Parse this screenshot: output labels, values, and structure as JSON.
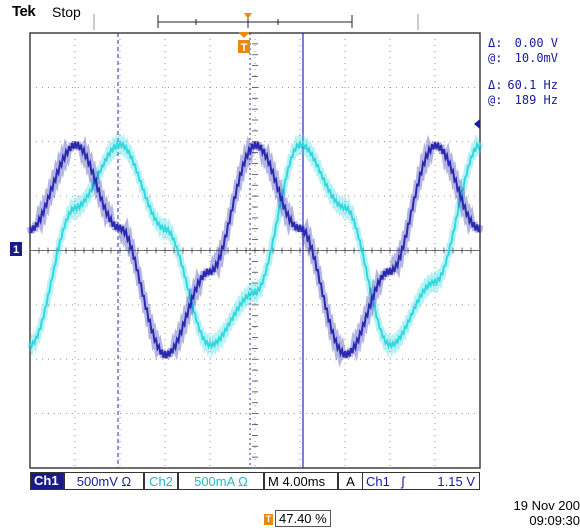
{
  "header": {
    "brand": "Tek",
    "status": "Stop"
  },
  "markers": {
    "trigger_glyph": "T",
    "ch1_glyph": "1"
  },
  "measurements": {
    "amp_delta_sym": "Δ:",
    "amp_delta_val": "0.00 V",
    "amp_at_sym": "@:",
    "amp_at_val": "10.0mV",
    "freq_delta_sym": "Δ:",
    "freq_delta_val": "60.1 Hz",
    "freq_at_sym": "@:",
    "freq_at_val": "189 Hz"
  },
  "bottom_bar": {
    "ch1_label": "Ch1",
    "ch1_scale": "500mV Ω",
    "ch2_label": "Ch2",
    "ch2_scale": "500mA Ω",
    "timebase": "M 4.00ms",
    "trigger_mode": "A",
    "trigger_source": "Ch1",
    "trigger_slope_icon": "rising-edge-icon",
    "trigger_slope": "ʃ",
    "trigger_level": "1.15 V"
  },
  "trigger_position": "47.40 %",
  "datetime": {
    "date": "19 Nov 200",
    "time": "09:09:30"
  },
  "colors": {
    "ch1": "#2a2ab0",
    "ch2": "#30d8e0",
    "trigger": "#e88a10",
    "grid": "#555555"
  },
  "chart_data": {
    "type": "line",
    "series": [
      {
        "name": "Ch1",
        "values": [
          0.2,
          1.0,
          0.2,
          -1.0,
          -0.2,
          1.0,
          0.2,
          -1.0,
          -0.2,
          1.0,
          0.2
        ]
      },
      {
        "name": "Ch2",
        "values": [
          -0.9,
          0.4,
          1.0,
          0.2,
          -0.9,
          -0.4,
          1.0,
          0.4,
          -0.9,
          -0.3,
          1.0
        ]
      }
    ]
  }
}
